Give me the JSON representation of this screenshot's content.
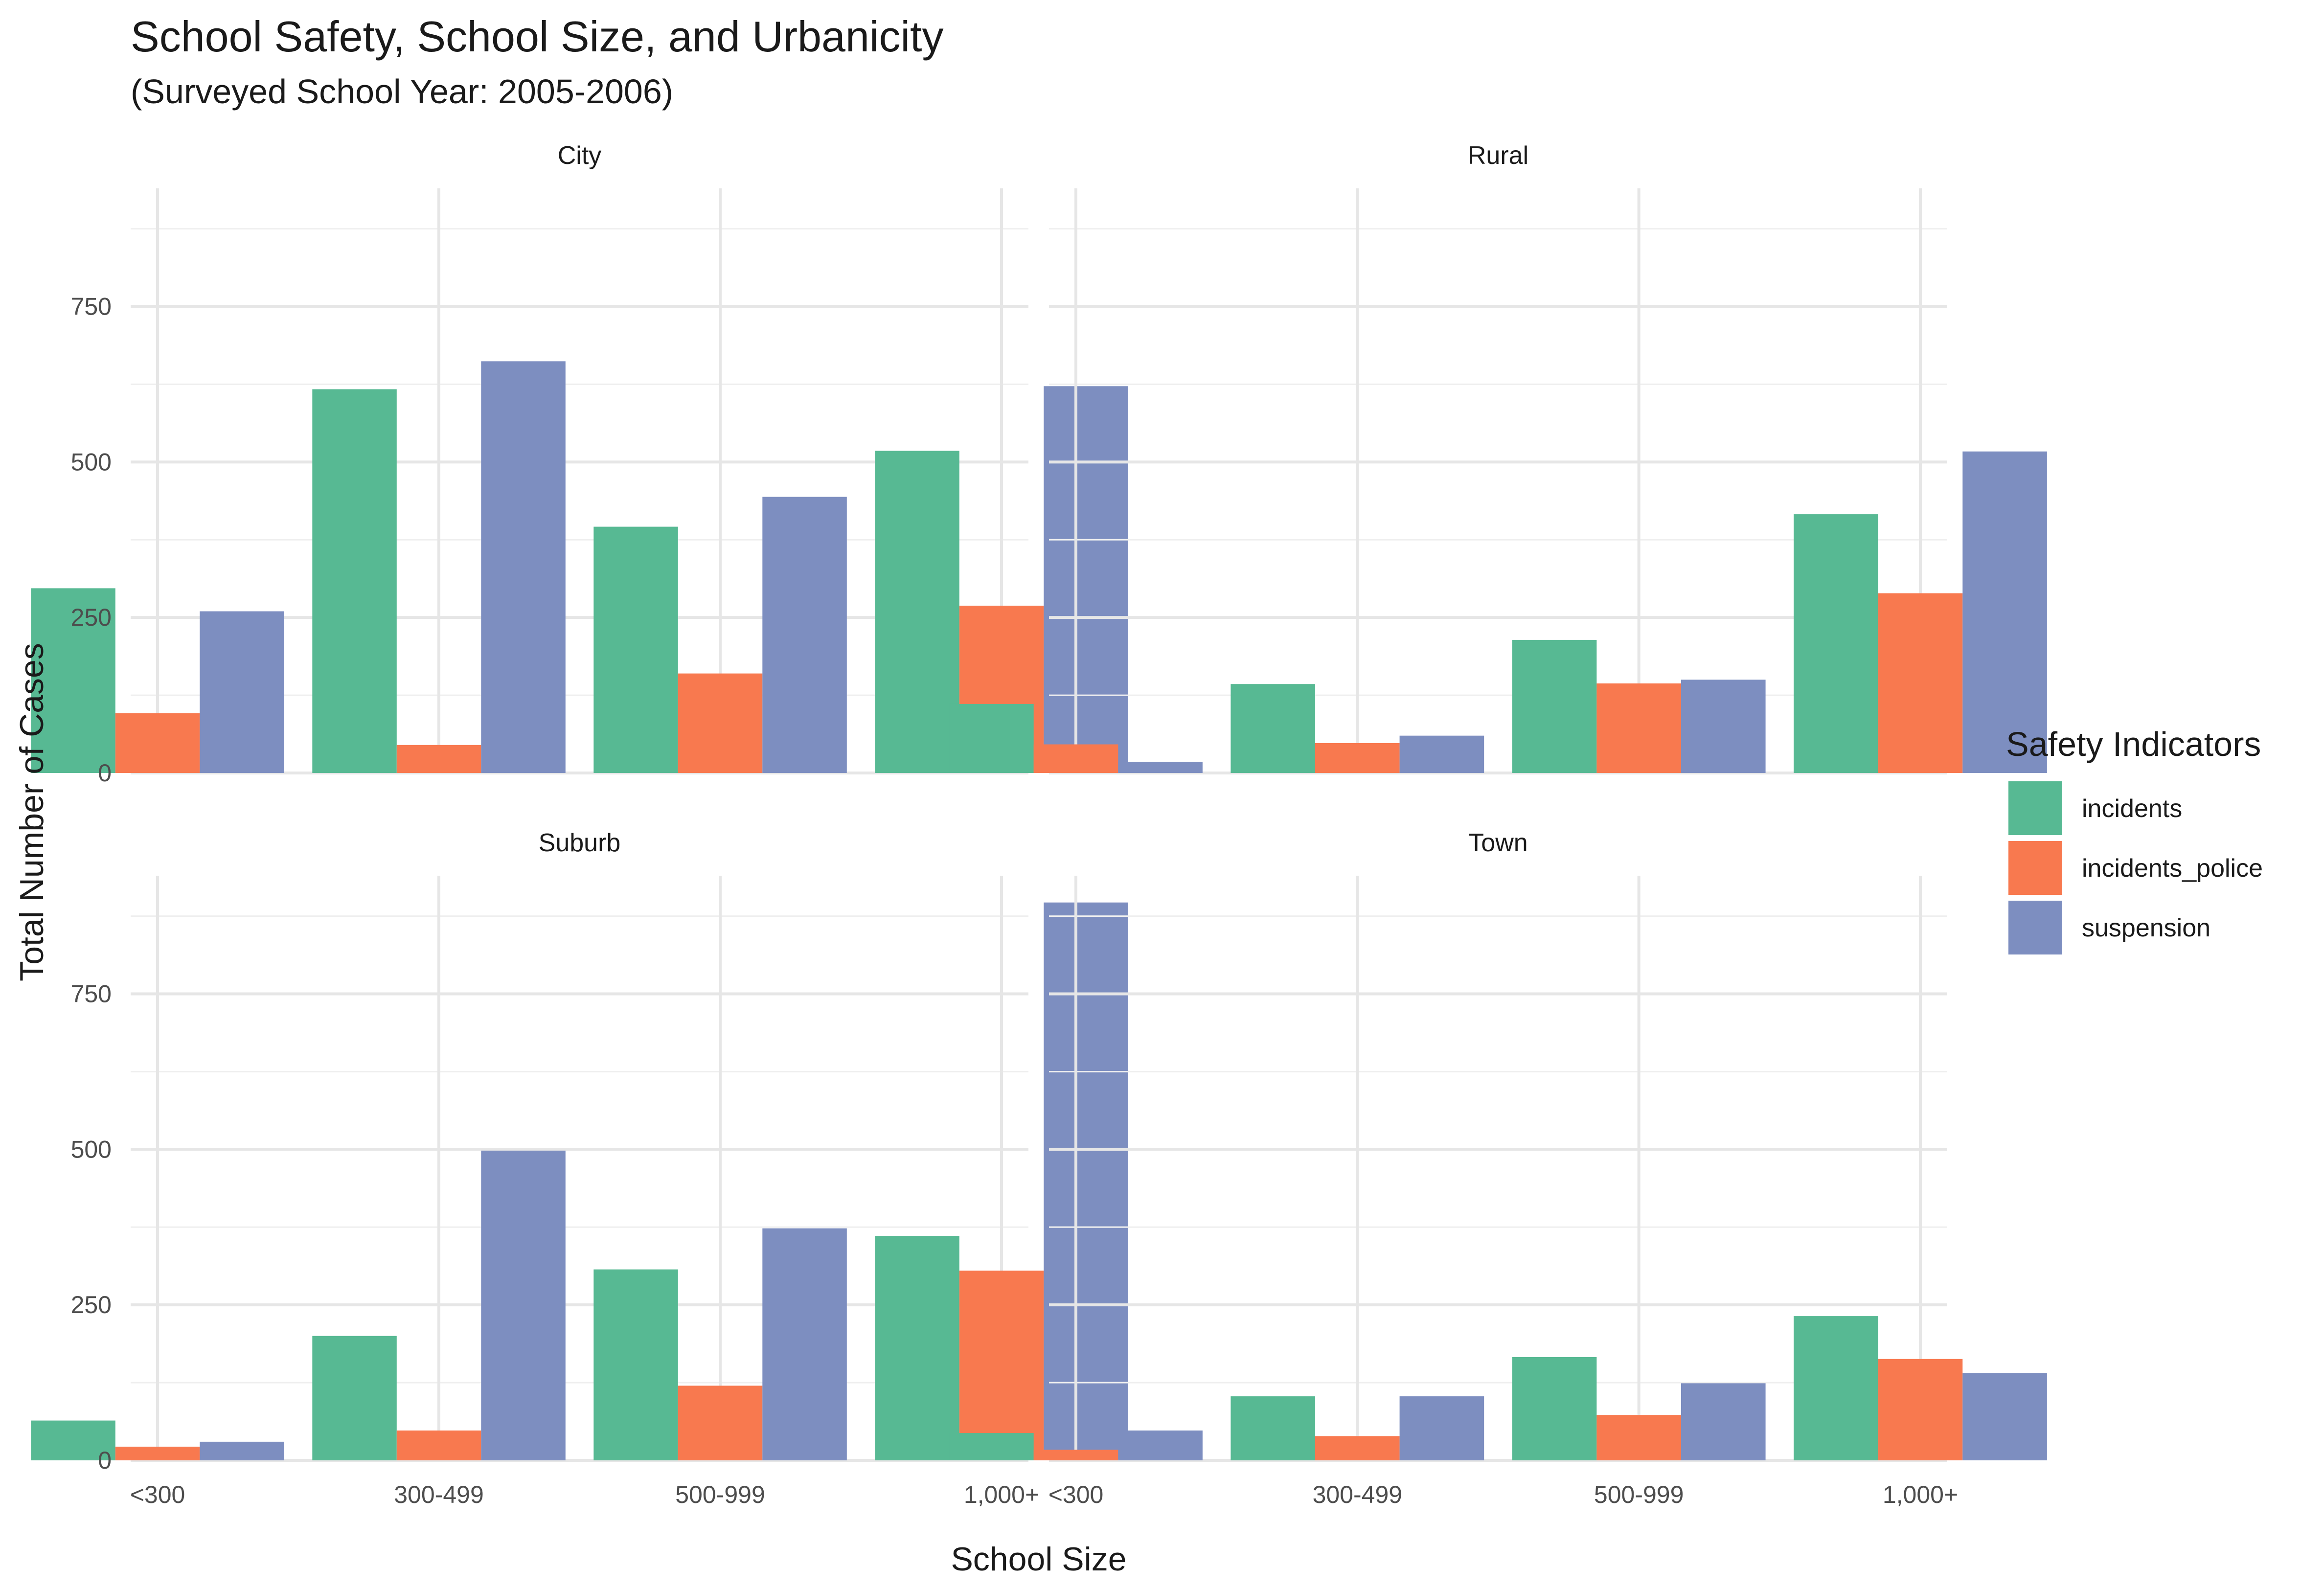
{
  "chart_data": {
    "type": "bar",
    "title": "School Safety, School Size, and Urbanicity",
    "subtitle": "(Surveyed School Year: 2005-2006)",
    "xlabel": "School Size",
    "ylabel": "Total Number of Cases",
    "categories": [
      "<300",
      "300-499",
      "500-999",
      "1,000+"
    ],
    "ylim": [
      0,
      940
    ],
    "yticks": [
      0,
      250,
      500,
      750
    ],
    "ytick_labels": [
      "0",
      "250",
      "500",
      "750"
    ],
    "grid": true,
    "legend": {
      "title": "Safety Indicators",
      "position": "right",
      "entries": [
        "incidents",
        "incidents_police",
        "suspension"
      ]
    },
    "colors": {
      "incidents": "#57b993",
      "incidents_police": "#f8794f",
      "suspension": "#7d8ec0"
    },
    "facets": [
      {
        "name": "City",
        "series": [
          {
            "name": "incidents",
            "values": [
              297,
              617,
              396,
              518
            ]
          },
          {
            "name": "incidents_police",
            "values": [
              96,
              45,
              160,
              269
            ]
          },
          {
            "name": "suspension",
            "values": [
              260,
              662,
              444,
              622
            ]
          }
        ]
      },
      {
        "name": "Rural",
        "series": [
          {
            "name": "incidents",
            "values": [
              111,
              143,
              214,
              416
            ]
          },
          {
            "name": "incidents_police",
            "values": [
              46,
              48,
              144,
              289
            ]
          },
          {
            "name": "suspension",
            "values": [
              18,
              60,
              150,
              517
            ]
          }
        ]
      },
      {
        "name": "Suburb",
        "series": [
          {
            "name": "incidents",
            "values": [
              64,
              200,
              307,
              361
            ]
          },
          {
            "name": "incidents_police",
            "values": [
              22,
              48,
              120,
              305
            ]
          },
          {
            "name": "suspension",
            "values": [
              30,
              498,
              373,
              897
            ]
          }
        ]
      },
      {
        "name": "Town",
        "series": [
          {
            "name": "incidents",
            "values": [
              44,
              103,
              166,
              232
            ]
          },
          {
            "name": "incidents_police",
            "values": [
              17,
              39,
              73,
              163
            ]
          },
          {
            "name": "suspension",
            "values": [
              48,
              103,
              124,
              140
            ]
          }
        ]
      }
    ]
  }
}
